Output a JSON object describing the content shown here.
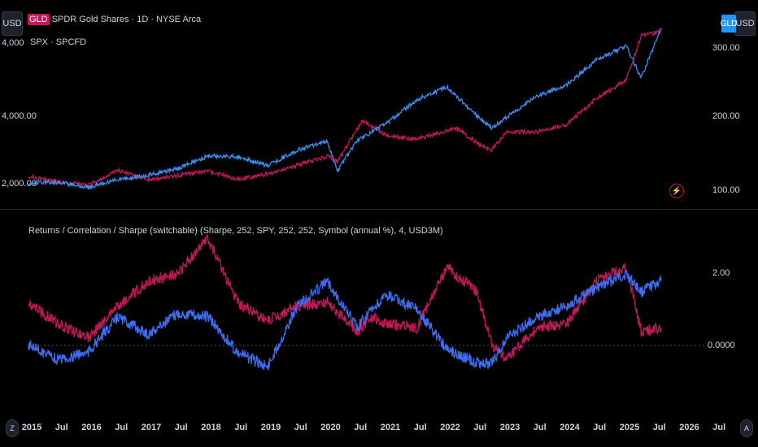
{
  "header": {
    "left_currency": "USD",
    "right_currency": "USD",
    "symbol_badge": "GLD",
    "main_symbol": "SPDR Gold Shares · 1D · NYSE Arca",
    "main_symbol_abbrev": "GLD",
    "compare_symbol": "SPX · SPCFD"
  },
  "indicator": {
    "label": "Returns / Correlation / Sharpe (switchable) (Sharpe, 252, SPY, 252, 252, Symbol (annual %), 4, USD3M)"
  },
  "bottom_left_button": "Z",
  "bottom_right_button": "A",
  "colors": {
    "gld": "#c2185b",
    "spx": "#3d8ef0",
    "ind_symbol": "#c2185b",
    "ind_bench": "#3d6df0",
    "badge": "#2196f3"
  },
  "chart_data": [
    {
      "type": "line",
      "left_axis_ticks": [
        "2,000.00",
        "4,000.00"
      ],
      "right_axis_ticks": [
        "300.00",
        "200.00",
        "100.00"
      ],
      "x_ticks": [
        "2015",
        "Jul",
        "2016",
        "Jul",
        "2017",
        "Jul",
        "2018",
        "Jul",
        "2019",
        "Jul",
        "2020",
        "Jul",
        "2021",
        "Jul",
        "2022",
        "Jul",
        "2023",
        "Jul",
        "2024",
        "Jul",
        "2025",
        "Jul",
        "2026",
        "Jul"
      ],
      "series": [
        {
          "name": "SPX · SPCFD",
          "axis": "left",
          "x": [
            "2015-01",
            "2015-07",
            "2016-01",
            "2016-07",
            "2017-01",
            "2017-07",
            "2018-01",
            "2018-07",
            "2019-01",
            "2019-07",
            "2020-01",
            "2020-03",
            "2020-07",
            "2021-01",
            "2021-07",
            "2022-01",
            "2022-07",
            "2022-10",
            "2023-01",
            "2023-07",
            "2024-01",
            "2024-07",
            "2025-01",
            "2025-04",
            "2025-08"
          ],
          "values": [
            2060,
            2090,
            1940,
            2170,
            2280,
            2470,
            2820,
            2800,
            2550,
            2980,
            3240,
            2400,
            3260,
            3750,
            4400,
            4750,
            3950,
            3600,
            3900,
            4500,
            4800,
            5500,
            5900,
            5000,
            6400
          ]
        },
        {
          "name": "SPDR Gold Shares · 1D · NYSE Arca",
          "axis": "right",
          "x": [
            "2015-01",
            "2015-07",
            "2016-01",
            "2016-07",
            "2017-01",
            "2017-07",
            "2018-01",
            "2018-07",
            "2019-01",
            "2019-07",
            "2020-01",
            "2020-03",
            "2020-08",
            "2021-01",
            "2021-07",
            "2022-03",
            "2022-07",
            "2022-10",
            "2023-01",
            "2023-07",
            "2024-01",
            "2024-07",
            "2025-01",
            "2025-04",
            "2025-08"
          ],
          "values": [
            120,
            112,
            108,
            128,
            115,
            121,
            127,
            116,
            123,
            135,
            147,
            140,
            195,
            175,
            170,
            185,
            165,
            155,
            180,
            180,
            190,
            225,
            250,
            310,
            315
          ]
        }
      ]
    },
    {
      "type": "line",
      "right_axis_ticks": [
        "2.00",
        "0.0000"
      ],
      "series": [
        {
          "name": "Symbol",
          "x": [
            "2015-01",
            "2015-07",
            "2016-01",
            "2016-07",
            "2017-01",
            "2017-07",
            "2018-01",
            "2018-07",
            "2019-01",
            "2019-07",
            "2020-01",
            "2020-07",
            "2020-10",
            "2021-01",
            "2021-07",
            "2022-01",
            "2022-07",
            "2022-10",
            "2023-01",
            "2023-07",
            "2024-01",
            "2024-07",
            "2025-01",
            "2025-04",
            "2025-08"
          ],
          "values": [
            1.2,
            0.6,
            0.2,
            1.1,
            1.8,
            2.0,
            3.0,
            1.2,
            0.7,
            1.1,
            1.2,
            0.4,
            0.8,
            0.6,
            0.5,
            2.2,
            1.5,
            0.0,
            -0.4,
            0.5,
            0.6,
            1.8,
            2.2,
            0.4,
            0.5
          ]
        },
        {
          "name": "SPY",
          "x": [
            "2015-01",
            "2015-07",
            "2016-01",
            "2016-07",
            "2017-01",
            "2017-07",
            "2018-01",
            "2018-07",
            "2019-01",
            "2019-07",
            "2020-01",
            "2020-07",
            "2020-10",
            "2021-01",
            "2021-07",
            "2022-01",
            "2022-07",
            "2022-10",
            "2023-01",
            "2023-07",
            "2024-01",
            "2024-07",
            "2025-01",
            "2025-04",
            "2025-08"
          ],
          "values": [
            0.0,
            -0.4,
            -0.2,
            0.8,
            0.3,
            0.9,
            0.8,
            -0.2,
            -0.6,
            1.1,
            1.8,
            0.5,
            1.0,
            1.4,
            1.0,
            -0.1,
            -0.5,
            -0.5,
            0.2,
            0.8,
            1.1,
            1.6,
            2.0,
            1.5,
            1.8
          ]
        }
      ]
    }
  ]
}
